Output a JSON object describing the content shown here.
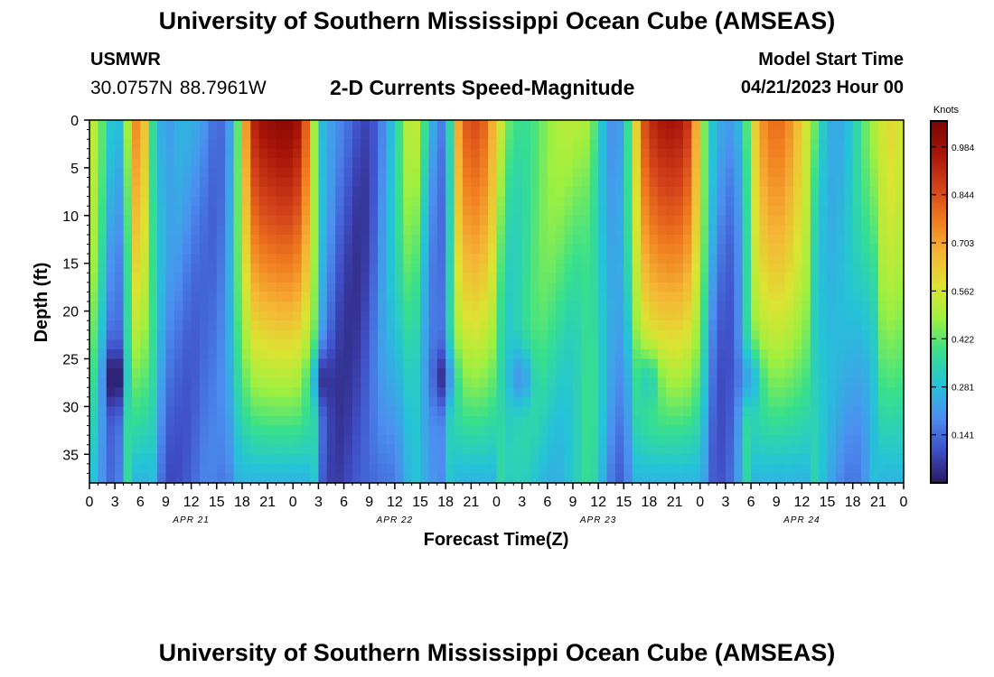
{
  "header": {
    "title": "University of Southern Mississippi Ocean Cube (AMSEAS)",
    "station": "USMWR",
    "coordinates": "30.0757N  88.7961W",
    "subtitle": "2-D Currents Speed-Magnitude",
    "model_start_label": "Model Start Time",
    "model_start_value": "04/21/2023 Hour 00"
  },
  "footer": {
    "title": "University of Southern Mississippi Ocean Cube (AMSEAS)"
  },
  "chart_data": {
    "type": "heatmap",
    "title": "2-D Currents Speed-Magnitude",
    "xlabel": "Forecast Time(Z)",
    "ylabel": "Depth (ft)",
    "x_range_hours": [
      0,
      96
    ],
    "y_range_ft": [
      0,
      38
    ],
    "y_inverted": true,
    "x_ticks": [
      "0",
      "3",
      "6",
      "9",
      "12",
      "15",
      "18",
      "21",
      "0",
      "3",
      "6",
      "9",
      "12",
      "15",
      "18",
      "21",
      "0",
      "3",
      "6",
      "9",
      "12",
      "15",
      "18",
      "21",
      "0",
      "3",
      "6",
      "9",
      "12",
      "15",
      "18",
      "21",
      "0"
    ],
    "y_ticks": [
      0,
      5,
      10,
      15,
      20,
      25,
      30,
      35
    ],
    "date_labels": [
      {
        "label": "APR 21",
        "hour": 12
      },
      {
        "label": "APR 22",
        "hour": 36
      },
      {
        "label": "APR 23",
        "hour": 60
      },
      {
        "label": "APR 24",
        "hour": 84
      }
    ],
    "colorbar": {
      "title": "Knots",
      "ticks": [
        0.141,
        0.281,
        0.422,
        0.562,
        0.703,
        0.844,
        0.984
      ],
      "range": [
        0,
        1.06
      ],
      "colors": [
        "#2a1760",
        "#3f4fc8",
        "#4c8ff0",
        "#25c3d8",
        "#38e08c",
        "#9ef040",
        "#dde332",
        "#f5b535",
        "#f07a1e",
        "#d2401a",
        "#a81508",
        "#7a0403"
      ]
    },
    "max_hour": 96,
    "max_depth": 38,
    "surface_speed_profile": [
      [
        0,
        0.56
      ],
      [
        1,
        0.45
      ],
      [
        2,
        0.3
      ],
      [
        3,
        0.2
      ],
      [
        4,
        0.3
      ],
      [
        5,
        0.7
      ],
      [
        6,
        0.78
      ],
      [
        7,
        0.5
      ],
      [
        8,
        0.32
      ],
      [
        9,
        0.2
      ],
      [
        10,
        0.2
      ],
      [
        11,
        0.22
      ],
      [
        12,
        0.2
      ],
      [
        13,
        0.22
      ],
      [
        14,
        0.2
      ],
      [
        15,
        0.18
      ],
      [
        16,
        0.2
      ],
      [
        17,
        0.32
      ],
      [
        18,
        0.55
      ],
      [
        19,
        0.9
      ],
      [
        20,
        0.98
      ],
      [
        21,
        1.0
      ],
      [
        22,
        1.02
      ],
      [
        23,
        1.03
      ],
      [
        24,
        1.02
      ],
      [
        25,
        0.95
      ],
      [
        26,
        0.7
      ],
      [
        27,
        0.3
      ],
      [
        28,
        0.2
      ],
      [
        29,
        0.15
      ],
      [
        30,
        0.12
      ],
      [
        31,
        0.12
      ],
      [
        32,
        0.1
      ],
      [
        33,
        0.13
      ],
      [
        34,
        0.18
      ],
      [
        35,
        0.26
      ],
      [
        36,
        0.3
      ],
      [
        37,
        0.42
      ],
      [
        38,
        0.52
      ],
      [
        39,
        0.45
      ],
      [
        40,
        0.28
      ],
      [
        41,
        0.22
      ],
      [
        42,
        0.2
      ],
      [
        43,
        0.6
      ],
      [
        44,
        0.8
      ],
      [
        45,
        0.86
      ],
      [
        46,
        0.84
      ],
      [
        47,
        0.78
      ],
      [
        48,
        0.6
      ],
      [
        49,
        0.45
      ],
      [
        50,
        0.42
      ],
      [
        51,
        0.43
      ],
      [
        52,
        0.44
      ],
      [
        53,
        0.45
      ],
      [
        54,
        0.46
      ],
      [
        55,
        0.46
      ],
      [
        56,
        0.47
      ],
      [
        57,
        0.48
      ],
      [
        58,
        0.5
      ],
      [
        59,
        0.52
      ],
      [
        60,
        0.4
      ],
      [
        61,
        0.28
      ],
      [
        62,
        0.2
      ],
      [
        63,
        0.25
      ],
      [
        64,
        0.45
      ],
      [
        65,
        0.8
      ],
      [
        66,
        0.9
      ],
      [
        67,
        0.95
      ],
      [
        68,
        0.97
      ],
      [
        69,
        0.97
      ],
      [
        70,
        0.95
      ],
      [
        71,
        0.85
      ],
      [
        72,
        0.55
      ],
      [
        73,
        0.3
      ],
      [
        74,
        0.2
      ],
      [
        75,
        0.18
      ],
      [
        76,
        0.2
      ],
      [
        77,
        0.35
      ],
      [
        78,
        0.55
      ],
      [
        79,
        0.7
      ],
      [
        80,
        0.78
      ],
      [
        81,
        0.8
      ],
      [
        82,
        0.78
      ],
      [
        83,
        0.7
      ],
      [
        84,
        0.62
      ],
      [
        85,
        0.5
      ],
      [
        86,
        0.4
      ],
      [
        87,
        0.32
      ],
      [
        88,
        0.28
      ],
      [
        89,
        0.28
      ],
      [
        90,
        0.3
      ],
      [
        91,
        0.35
      ],
      [
        92,
        0.42
      ],
      [
        93,
        0.5
      ],
      [
        94,
        0.62
      ],
      [
        95,
        0.58
      ],
      [
        96,
        0.55
      ]
    ]
  }
}
